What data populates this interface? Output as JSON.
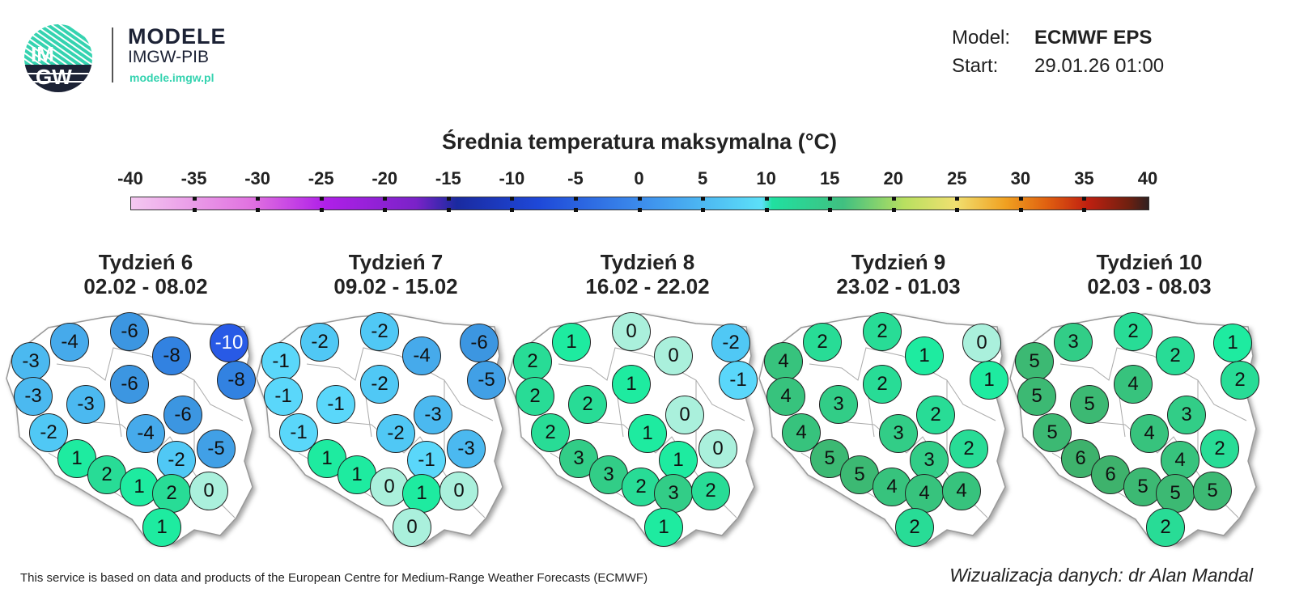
{
  "logo": {
    "mark_text": "IMGW",
    "brand_line1": "MODELE",
    "brand_line2": "IMGW-PIB",
    "brand_url": "modele.imgw.pl",
    "accent": "#35d3b0",
    "dark": "#1c2235"
  },
  "meta": {
    "model_label": "Model:",
    "model_value": "ECMWF EPS",
    "start_label": "Start:",
    "start_value": "29.01.26 01:00"
  },
  "title": "Średnia temperatura maksymalna (°C)",
  "colorbar": {
    "ticks": [
      "-40",
      "-35",
      "-30",
      "-25",
      "-20",
      "-15",
      "-10",
      "-5",
      "0",
      "5",
      "10",
      "15",
      "20",
      "25",
      "30",
      "35",
      "40"
    ],
    "min": -40,
    "max": 40
  },
  "weeks": [
    {
      "name": "Tydzień 6",
      "range": "02.02 - 08.02",
      "values": [
        -4,
        -6,
        -3,
        -8,
        -10,
        -8,
        -6,
        -3,
        -3,
        -6,
        -4,
        -2,
        -5,
        1,
        -2,
        2,
        1,
        2,
        0,
        1
      ]
    },
    {
      "name": "Tydzień 7",
      "range": "09.02 - 15.02",
      "values": [
        -2,
        -2,
        -1,
        -4,
        -6,
        -5,
        -2,
        -1,
        -1,
        -3,
        -2,
        -1,
        -3,
        1,
        -1,
        1,
        0,
        1,
        0,
        0
      ]
    },
    {
      "name": "Tydzień 8",
      "range": "16.02 - 22.02",
      "values": [
        1,
        0,
        2,
        0,
        -2,
        -1,
        1,
        2,
        2,
        0,
        1,
        2,
        0,
        3,
        1,
        3,
        2,
        3,
        2,
        1
      ]
    },
    {
      "name": "Tydzień 9",
      "range": "23.02 - 01.03",
      "values": [
        2,
        2,
        4,
        1,
        0,
        1,
        2,
        4,
        3,
        2,
        3,
        4,
        2,
        5,
        3,
        5,
        4,
        4,
        4,
        2
      ]
    },
    {
      "name": "Tydzień 10",
      "range": "02.03 - 08.03",
      "values": [
        3,
        2,
        5,
        2,
        1,
        2,
        4,
        5,
        5,
        3,
        4,
        5,
        2,
        6,
        4,
        6,
        5,
        5,
        5,
        2
      ]
    }
  ],
  "footer": {
    "source": "This service is based on data and products of the European Centre for Medium-Range Weather Forecasts (ECMWF)",
    "credit": "Wizualizacja danych: dr Alan Mandal"
  }
}
